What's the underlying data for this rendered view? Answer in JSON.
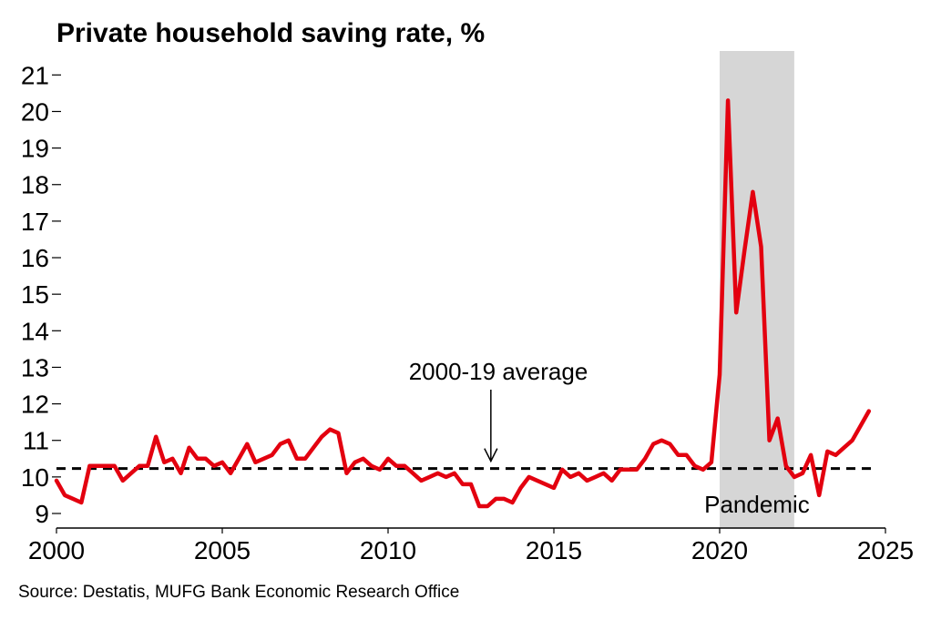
{
  "chart_data": {
    "type": "line",
    "title": "Private household saving rate, %",
    "source": "Source: Destatis, MUFG Bank Economic Research Office",
    "xlabel": "",
    "ylabel": "",
    "xlim": [
      2000,
      2025
    ],
    "ylim": [
      9,
      21
    ],
    "x_ticks": [
      2000,
      2005,
      2010,
      2015,
      2020,
      2025
    ],
    "y_ticks": [
      9,
      10,
      11,
      12,
      13,
      14,
      15,
      16,
      17,
      18,
      19,
      20,
      21
    ],
    "grid": false,
    "colors": {
      "line": "#e3000f",
      "average": "#000000",
      "shade": "#d6d6d6"
    },
    "average": {
      "label": "2000-19 average",
      "value": 10.23,
      "arrow_x": 2013.1
    },
    "shaded_region": {
      "label": "Pandemic",
      "x_start": 2020.0,
      "x_end": 2022.25
    },
    "series": [
      {
        "x": [
          2000.0,
          2000.25,
          2000.5,
          2000.75,
          2001.0,
          2001.25,
          2001.5,
          2001.75,
          2002.0,
          2002.25,
          2002.5,
          2002.75,
          2003.0,
          2003.25,
          2003.5,
          2003.75,
          2004.0,
          2004.25,
          2004.5,
          2004.75,
          2005.0,
          2005.25,
          2005.5,
          2005.75,
          2006.0,
          2006.25,
          2006.5,
          2006.75,
          2007.0,
          2007.25,
          2007.5,
          2007.75,
          2008.0,
          2008.25,
          2008.5,
          2008.75,
          2009.0,
          2009.25,
          2009.5,
          2009.75,
          2010.0,
          2010.25,
          2010.5,
          2010.75,
          2011.0,
          2011.25,
          2011.5,
          2011.75,
          2012.0,
          2012.25,
          2012.5,
          2012.75,
          2013.0,
          2013.25,
          2013.5,
          2013.75,
          2014.0,
          2014.25,
          2014.5,
          2014.75,
          2015.0,
          2015.25,
          2015.5,
          2015.75,
          2016.0,
          2016.25,
          2016.5,
          2016.75,
          2017.0,
          2017.25,
          2017.5,
          2017.75,
          2018.0,
          2018.25,
          2018.5,
          2018.75,
          2019.0,
          2019.25,
          2019.5,
          2019.75,
          2020.0,
          2020.25,
          2020.5,
          2020.75,
          2021.0,
          2021.25,
          2021.5,
          2021.75,
          2022.0,
          2022.25,
          2022.5,
          2022.75,
          2023.0,
          2023.25,
          2023.5,
          2023.75,
          2024.0,
          2024.25,
          2024.5
        ],
        "values": [
          9.9,
          9.5,
          9.4,
          9.3,
          10.3,
          10.3,
          10.3,
          10.3,
          9.9,
          10.1,
          10.3,
          10.3,
          11.1,
          10.4,
          10.5,
          10.1,
          10.8,
          10.5,
          10.5,
          10.3,
          10.4,
          10.1,
          10.5,
          10.9,
          10.4,
          10.5,
          10.6,
          10.9,
          11.0,
          10.5,
          10.5,
          10.8,
          11.1,
          11.3,
          11.2,
          10.1,
          10.4,
          10.5,
          10.3,
          10.2,
          10.5,
          10.3,
          10.3,
          10.1,
          9.9,
          10.0,
          10.1,
          10.0,
          10.1,
          9.8,
          9.8,
          9.2,
          9.2,
          9.4,
          9.4,
          9.3,
          9.7,
          10.0,
          9.9,
          9.8,
          9.7,
          10.2,
          10.0,
          10.1,
          9.9,
          10.0,
          10.1,
          9.9,
          10.2,
          10.2,
          10.2,
          10.5,
          10.9,
          11.0,
          10.9,
          10.6,
          10.6,
          10.3,
          10.2,
          10.4,
          12.8,
          20.3,
          14.5,
          16.2,
          17.8,
          16.3,
          11.0,
          11.6,
          10.3,
          10.0,
          10.1,
          10.6,
          9.5,
          10.7,
          10.6,
          10.8,
          11.0,
          11.4,
          11.8
        ]
      }
    ]
  }
}
